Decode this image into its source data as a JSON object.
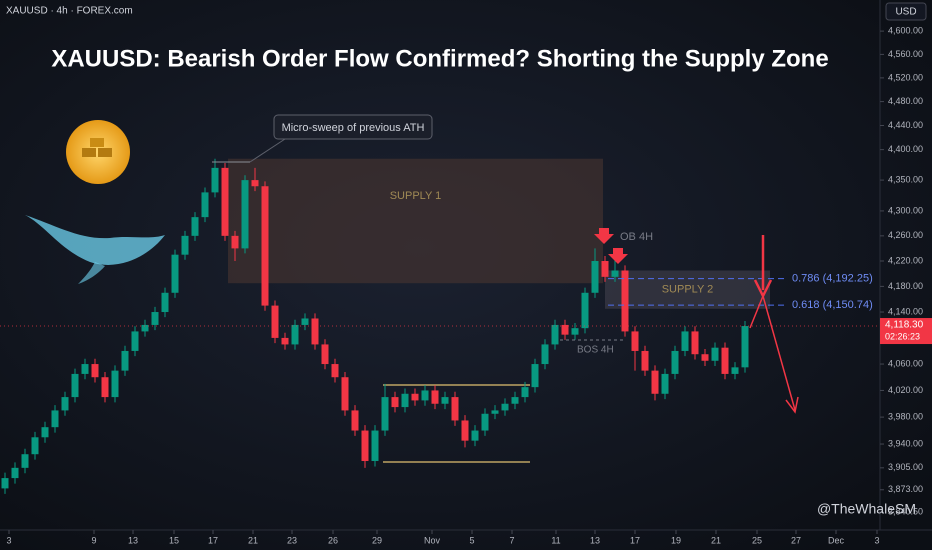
{
  "chart_data": {
    "type": "candlestick",
    "title": "XAUUSD: Bearish Order Flow Confirmed? Shorting the Supply Zone",
    "symbol": "XAUUSD · 4h · FOREX.com",
    "currency": "USD",
    "watermark": "@TheWhaleSM",
    "log_scale": true,
    "up_color": "#089981",
    "down_color": "#f23645",
    "ylim": [
      3815,
      4654
    ],
    "yticks": [
      {
        "value": 4600,
        "label": "4,600.00"
      },
      {
        "value": 4560,
        "label": "4,560.00"
      },
      {
        "value": 4520,
        "label": "4,520.00"
      },
      {
        "value": 4480,
        "label": "4,480.00"
      },
      {
        "value": 4440,
        "label": "4,440.00"
      },
      {
        "value": 4400,
        "label": "4,400.00"
      },
      {
        "value": 4350,
        "label": "4,350.00"
      },
      {
        "value": 4300,
        "label": "4,300.00"
      },
      {
        "value": 4260,
        "label": "4,260.00"
      },
      {
        "value": 4220,
        "label": "4,220.00"
      },
      {
        "value": 4180,
        "label": "4,180.00"
      },
      {
        "value": 4140,
        "label": "4,140.00"
      },
      {
        "value": 4060,
        "label": "4,060.00"
      },
      {
        "value": 4020,
        "label": "4,020.00"
      },
      {
        "value": 3980,
        "label": "3,980.00"
      },
      {
        "value": 3940,
        "label": "3,940.00"
      },
      {
        "value": 3905,
        "label": "3,905.00"
      },
      {
        "value": 3873,
        "label": "3,873.00"
      },
      {
        "value": 3840.5,
        "label": "3,840.50"
      }
    ],
    "xlim": [
      -0.5,
      87.5
    ],
    "xticks": [
      {
        "value": 0.4,
        "label": "3"
      },
      {
        "value": 8.9,
        "label": "9"
      },
      {
        "value": 12.8,
        "label": "13"
      },
      {
        "value": 16.9,
        "label": "15"
      },
      {
        "value": 20.8,
        "label": "17"
      },
      {
        "value": 24.8,
        "label": "21"
      },
      {
        "value": 28.7,
        "label": "23"
      },
      {
        "value": 32.8,
        "label": "26"
      },
      {
        "value": 37.2,
        "label": "29"
      },
      {
        "value": 42.7,
        "label": "Nov"
      },
      {
        "value": 46.7,
        "label": "5"
      },
      {
        "value": 50.7,
        "label": "7"
      },
      {
        "value": 55.1,
        "label": "11"
      },
      {
        "value": 59,
        "label": "13"
      },
      {
        "value": 63,
        "label": "17"
      },
      {
        "value": 67.1,
        "label": "19"
      },
      {
        "value": 71.1,
        "label": "21"
      },
      {
        "value": 75.2,
        "label": "25"
      },
      {
        "value": 79.1,
        "label": "27"
      },
      {
        "value": 83.1,
        "label": "Dec"
      },
      {
        "value": 87.2,
        "label": "3"
      }
    ],
    "open": [
      3875,
      3890,
      3905,
      3925,
      3950,
      3965,
      3990,
      4010,
      4045,
      4060,
      4040,
      4010,
      4050,
      4080,
      4110,
      4120,
      4140,
      4170,
      4230,
      4260,
      4290,
      4330,
      4370,
      4260,
      4240,
      4350,
      4340,
      4150,
      4100,
      4090,
      4120,
      4130,
      4090,
      4060,
      4040,
      3990,
      3960,
      3915,
      3960,
      4010,
      3995,
      4015,
      4005,
      4020,
      4000,
      4010,
      3975,
      3945,
      3960,
      3985,
      3990,
      4000,
      4010,
      4025,
      4060,
      4090,
      4120,
      4105,
      4115,
      4170,
      4220,
      4195,
      4205,
      4110,
      4080,
      4050,
      4015,
      4045,
      4080,
      4110,
      4075,
      4065,
      4085,
      4045,
      4055
    ],
    "high": [
      3898,
      3913,
      3933,
      3958,
      3973,
      3998,
      4018,
      4053,
      4068,
      4068,
      4048,
      4058,
      4088,
      4118,
      4128,
      4148,
      4178,
      4238,
      4268,
      4298,
      4338,
      4385,
      4378,
      4268,
      4358,
      4370,
      4348,
      4158,
      4108,
      4128,
      4138,
      4138,
      4098,
      4068,
      4048,
      3998,
      3968,
      3968,
      4030,
      4018,
      4023,
      4023,
      4028,
      4028,
      4018,
      4018,
      3983,
      3968,
      3993,
      3998,
      4008,
      4018,
      4033,
      4068,
      4098,
      4128,
      4128,
      4123,
      4178,
      4240,
      4228,
      4225,
      4213,
      4118,
      4088,
      4058,
      4053,
      4088,
      4118,
      4118,
      4083,
      4093,
      4093,
      4063,
      4126
    ],
    "low": [
      3867,
      3882,
      3897,
      3917,
      3942,
      3957,
      3982,
      4002,
      4037,
      4032,
      4002,
      4002,
      4042,
      4072,
      4102,
      4112,
      4132,
      4162,
      4222,
      4252,
      4282,
      4322,
      4252,
      4220,
      4232,
      4332,
      4142,
      4092,
      4082,
      4082,
      4112,
      4082,
      4052,
      4032,
      3982,
      3952,
      3905,
      3907,
      3952,
      3987,
      3987,
      3997,
      3997,
      3992,
      3992,
      3967,
      3935,
      3937,
      3952,
      3977,
      3982,
      3992,
      4002,
      4017,
      4052,
      4082,
      4097,
      4097,
      4107,
      4162,
      4187,
      4187,
      4102,
      4050,
      4042,
      4005,
      4007,
      4037,
      4072,
      4067,
      4057,
      4057,
      4037,
      4037,
      4047
    ],
    "close": [
      3890,
      3905,
      3925,
      3950,
      3965,
      3990,
      4010,
      4045,
      4060,
      4040,
      4010,
      4050,
      4080,
      4110,
      4120,
      4140,
      4170,
      4230,
      4260,
      4290,
      4330,
      4370,
      4260,
      4240,
      4350,
      4340,
      4150,
      4100,
      4090,
      4120,
      4130,
      4090,
      4060,
      4040,
      3990,
      3960,
      3915,
      3960,
      4010,
      3995,
      4015,
      4005,
      4020,
      4000,
      4010,
      3975,
      3945,
      3960,
      3985,
      3990,
      4000,
      4010,
      4025,
      4060,
      4090,
      4120,
      4105,
      4115,
      4170,
      4220,
      4195,
      4205,
      4110,
      4080,
      4050,
      4015,
      4045,
      4080,
      4110,
      4075,
      4065,
      4085,
      4045,
      4055,
      4118.3
    ],
    "last_price": {
      "value": 4118.3,
      "label": "4,118.30"
    },
    "countdown": "02:26:23",
    "zones": [
      {
        "label": "SUPPLY 1",
        "top": 4385,
        "bottom": 4185
      },
      {
        "label": "SUPPLY 2",
        "top": 4205,
        "bottom": 4145
      }
    ],
    "fib_levels": [
      {
        "price": 4192.25,
        "label": "0.786 (4,192.25)"
      },
      {
        "price": 4150.74,
        "label": "0.618 (4,150.74)"
      }
    ],
    "annotations": [
      "Micro-sweep of previous ATH",
      "OB 4H",
      "BOS 4H"
    ]
  }
}
